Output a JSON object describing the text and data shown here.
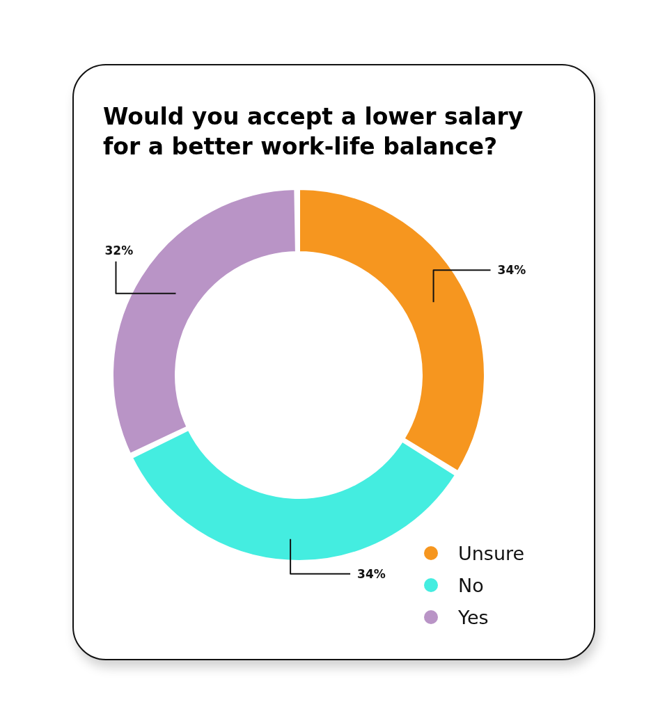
{
  "chart_data": {
    "type": "donut",
    "title": "Would you accept a lower salary for a better work-life balance?",
    "categories": [
      "Unsure",
      "No",
      "Yes"
    ],
    "values": [
      34,
      34,
      32
    ],
    "colors": [
      "#f6961f",
      "#44ede0",
      "#b994c6"
    ],
    "value_labels": [
      "34%",
      "34%",
      "32%"
    ],
    "legend": "bottom right"
  }
}
